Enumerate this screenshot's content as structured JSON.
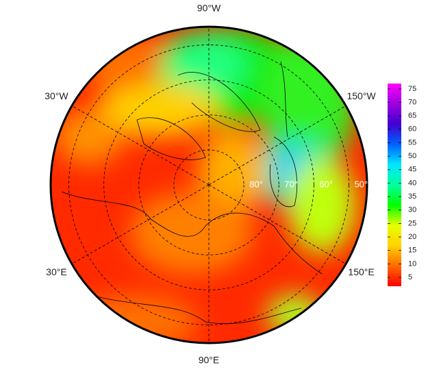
{
  "map": {
    "meridians": [
      {
        "value": -90,
        "label": "90°W"
      },
      {
        "value": -30,
        "label": "30°W"
      },
      {
        "value": -150,
        "label": "150°W"
      },
      {
        "value": 30,
        "label": "30°E"
      },
      {
        "value": 150,
        "label": "150°E"
      },
      {
        "value": 90,
        "label": "90°E"
      }
    ],
    "parallels": [
      {
        "value": 80,
        "label": "80°"
      },
      {
        "value": 70,
        "label": "70°"
      },
      {
        "value": 60,
        "label": "60°"
      },
      {
        "value": 50,
        "label": "50°"
      }
    ],
    "rlim": [
      90,
      45
    ]
  },
  "colorbar": {
    "lim": [
      1.7,
      77
    ],
    "ticks": [
      5,
      10,
      15,
      20,
      25,
      30,
      35,
      40,
      45,
      50,
      55,
      60,
      65,
      70,
      75
    ],
    "colors": [
      "#ff0000",
      "#ff6a00",
      "#ffd200",
      "#e6ff00",
      "#00ff00",
      "#00ffa0",
      "#00e6ff",
      "#0060ff",
      "#4000d0",
      "#a000e0",
      "#ff00ff"
    ]
  }
}
